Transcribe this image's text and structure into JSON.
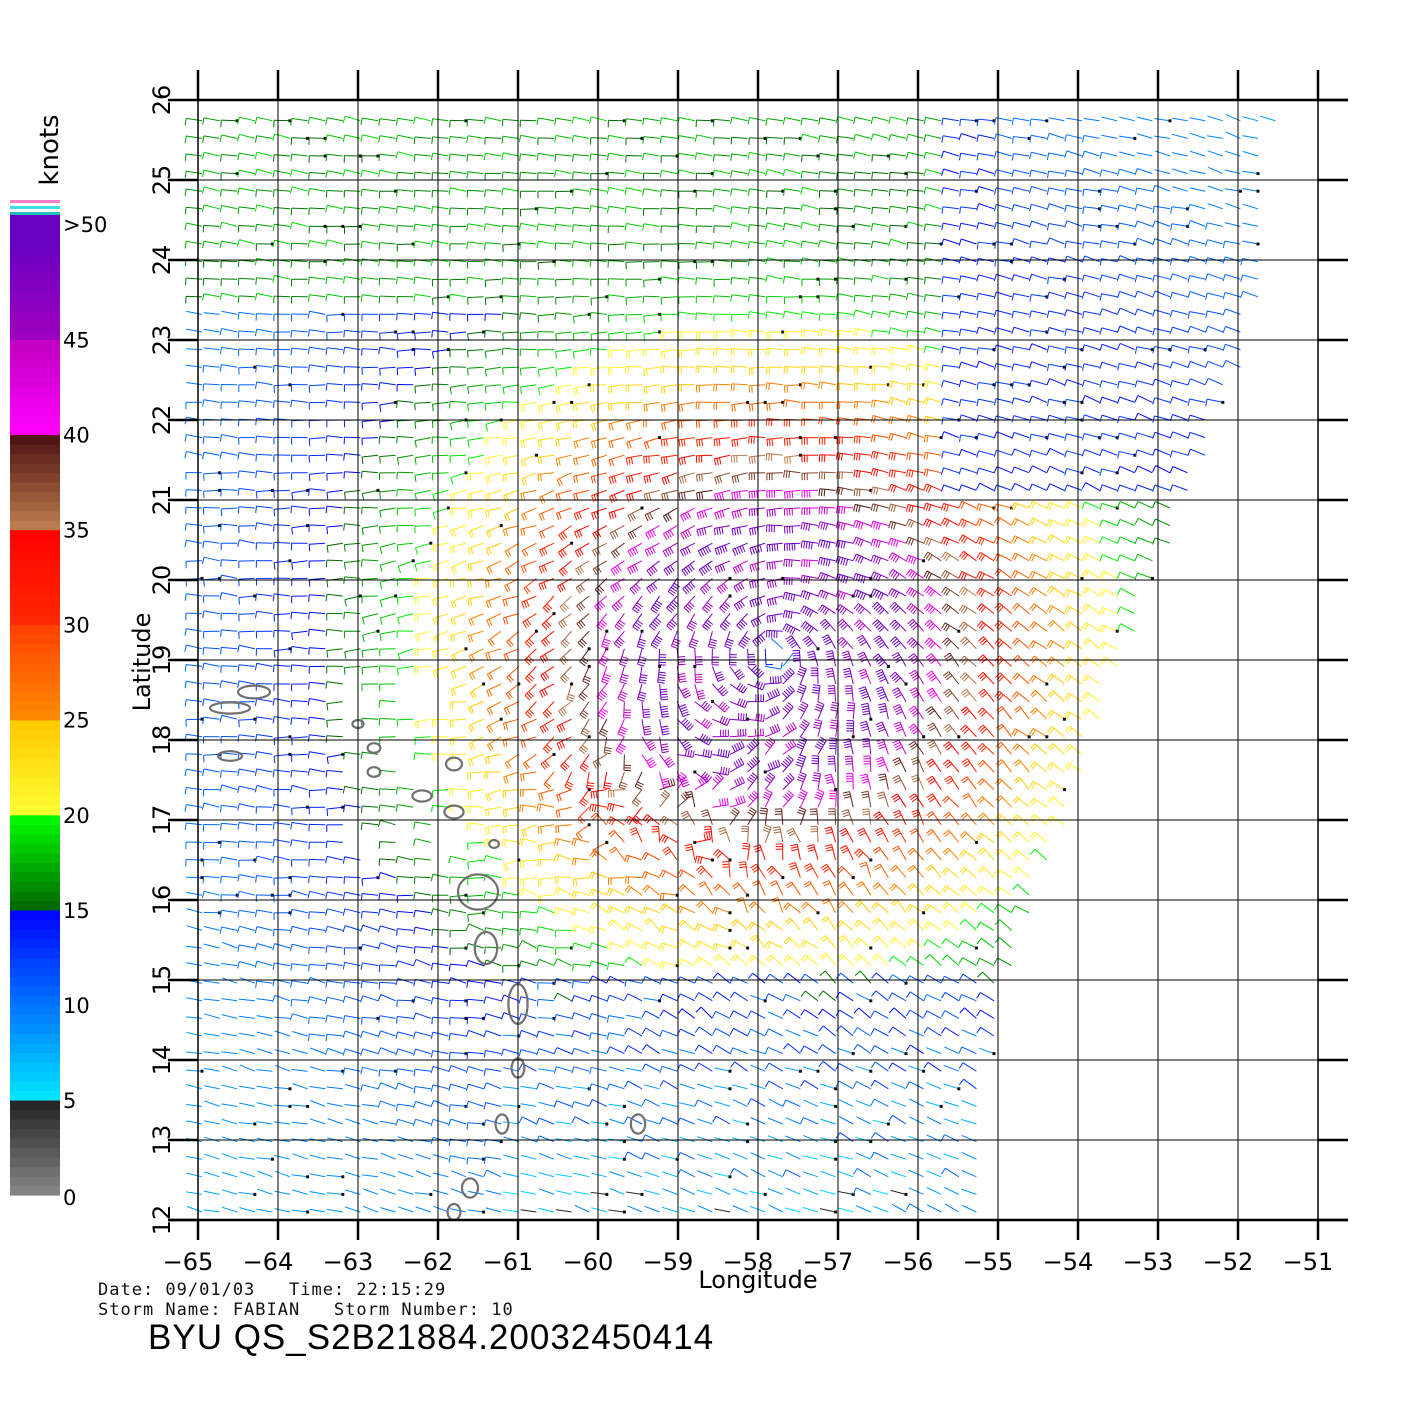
{
  "map": {
    "xlabel": "Longitude",
    "ylabel": "Latitude",
    "lon_range": [
      -65,
      -51
    ],
    "lat_range": [
      12,
      26
    ],
    "x_ticks": [
      "−65",
      "−64",
      "−63",
      "−62",
      "−61",
      "−60",
      "−59",
      "−58",
      "−57",
      "−56",
      "−55",
      "−54",
      "−53",
      "−52",
      "−51"
    ],
    "y_ticks": [
      "12",
      "13",
      "14",
      "15",
      "16",
      "17",
      "18",
      "19",
      "20",
      "21",
      "22",
      "23",
      "24",
      "25",
      "26"
    ],
    "storm_center": {
      "lon": -57.8,
      "lat": 19.1
    },
    "swath_edge": [
      [
        -51.5,
        26
      ],
      [
        -51.8,
        23
      ],
      [
        -52.8,
        20.5
      ],
      [
        -53.6,
        18.5
      ],
      [
        -54.4,
        16.3
      ],
      [
        -55.0,
        14.5
      ],
      [
        -55.2,
        12.6
      ]
    ]
  },
  "legend": {
    "title": "knots",
    "stops": [
      {
        "label": ">50",
        "value": 50
      },
      {
        "label": "45",
        "value": 45
      },
      {
        "label": "40",
        "value": 40
      },
      {
        "label": "35",
        "value": 35
      },
      {
        "label": "30",
        "value": 30
      },
      {
        "label": "25",
        "value": 25
      },
      {
        "label": "20",
        "value": 20
      },
      {
        "label": "15",
        "value": 15
      },
      {
        "label": "10",
        "value": 10
      },
      {
        "label": "5",
        "value": 5
      },
      {
        "label": "0",
        "value": 0
      }
    ],
    "colors": {
      "0_5": [
        "#888888",
        "#222222"
      ],
      "5_15": [
        "#00e8ff",
        "#0000ff"
      ],
      "15_20": [
        "#006400",
        "#00ff00"
      ],
      "20_25": [
        "#ffff33",
        "#ffc800"
      ],
      "25_30": [
        "#ff8c00",
        "#ff4000"
      ],
      "30_35": [
        "#ff2a00",
        "#ff0000"
      ],
      "35_40": [
        "#c08050",
        "#4a1010"
      ],
      "40_45": [
        "#ff00ff",
        "#c000c0"
      ],
      "45_50": [
        "#a000c0",
        "#6a00c0"
      ]
    }
  },
  "footer": {
    "date_line": "Date: 09/01/03   Time: 22:15:29",
    "storm_line": "Storm Name: FABIAN   Storm Number: 10",
    "product_id": "BYU QS_S2B21884.20032450414"
  }
}
